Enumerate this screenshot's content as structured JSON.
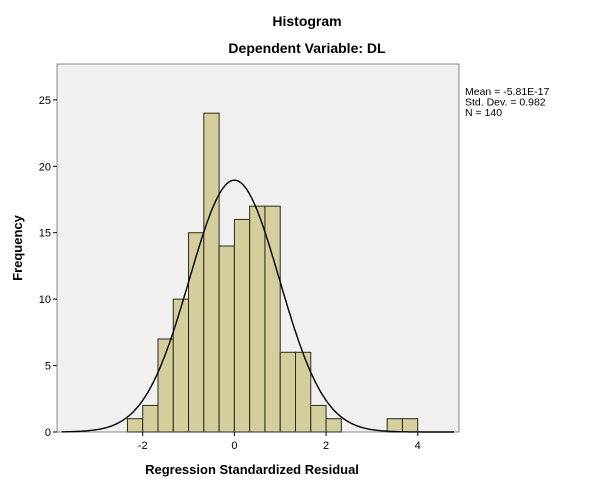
{
  "chart_data": {
    "type": "bar",
    "title": "Histogram",
    "subtitle": "Dependent Variable: DL",
    "xlabel": "Regression Standardized Residual",
    "ylabel": "Frequency",
    "bin_width": 0.3333,
    "bin_start": -2.3333,
    "values": [
      1,
      2,
      7,
      10,
      15,
      24,
      14,
      16,
      17,
      17,
      6,
      6,
      2,
      1,
      0,
      0,
      0,
      1,
      1
    ],
    "xlim": [
      -3.87,
      4.9
    ],
    "ylim": [
      0,
      27.7
    ],
    "xticks": [
      -2,
      0,
      2,
      4
    ],
    "yticks": [
      0,
      5,
      10,
      15,
      20,
      25
    ],
    "normal_curve": {
      "mean": 0,
      "sd": 0.982,
      "n": 140
    },
    "stats": [
      "Mean = -5.81E-17",
      "Std. Dev. = 0.982",
      "N = 140"
    ],
    "grid": false,
    "legend": "right",
    "colors": {
      "bar": "#D3CE9B",
      "bar_edge": "#2b2b1a",
      "plot_bg": "#F0F0F0",
      "curve": "#000000"
    }
  }
}
